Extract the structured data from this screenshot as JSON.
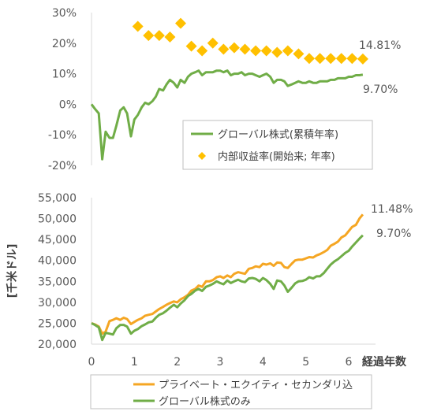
{
  "chart_data": [
    {
      "type": "line",
      "yticks": [
        "30%",
        "20%",
        "10%",
        "0%",
        "-10%",
        "-20%"
      ],
      "ylim": [
        -20,
        30
      ],
      "xlim": [
        0,
        6.5
      ],
      "legend_position": "bottom-right",
      "series": [
        {
          "name": "グローバル株式(累積年率)",
          "color": "#70ad47",
          "kind": "line",
          "end_label": "9.70%",
          "x": [
            0,
            0.08,
            0.17,
            0.25,
            0.33,
            0.42,
            0.5,
            0.58,
            0.67,
            0.75,
            0.83,
            0.92,
            1.0,
            1.08,
            1.17,
            1.25,
            1.33,
            1.42,
            1.5,
            1.58,
            1.67,
            1.75,
            1.83,
            1.92,
            2.0,
            2.08,
            2.17,
            2.25,
            2.33,
            2.42,
            2.5,
            2.58,
            2.67,
            2.75,
            2.83,
            2.92,
            3.0,
            3.08,
            3.17,
            3.25,
            3.33,
            3.42,
            3.5,
            3.58,
            3.67,
            3.75,
            3.83,
            3.92,
            4.0,
            4.08,
            4.17,
            4.25,
            4.33,
            4.42,
            4.5,
            4.58,
            4.67,
            4.75,
            4.83,
            4.92,
            5.0,
            5.08,
            5.17,
            5.25,
            5.33,
            5.42,
            5.5,
            5.58,
            5.67,
            5.75,
            5.83,
            5.92,
            6.0,
            6.08,
            6.17,
            6.25,
            6.33
          ],
          "y": [
            0,
            -1.5,
            -3,
            -18,
            -9,
            -11,
            -11,
            -7,
            -2,
            -1,
            -3,
            -10.5,
            -5,
            -3.5,
            -1,
            0.5,
            0,
            1,
            2.5,
            5,
            4.5,
            6.5,
            8,
            7,
            5.5,
            8,
            7,
            9,
            10,
            10.5,
            11,
            9.5,
            10.5,
            10.5,
            10.5,
            11,
            11,
            10.5,
            11,
            9.5,
            10,
            10,
            10.5,
            9.5,
            10,
            10,
            9.5,
            9,
            9.5,
            10,
            9,
            7,
            8,
            8,
            7.5,
            6,
            6.5,
            7,
            7.5,
            7,
            7,
            7.5,
            7,
            7,
            7.5,
            7.5,
            7.5,
            8,
            8,
            8.5,
            8.5,
            8.5,
            9,
            9,
            9.5,
            9.5,
            9.7
          ]
        },
        {
          "name": "内部収益率(開始来; 年率)",
          "color": "#ffc000",
          "kind": "marker",
          "end_label": "14.81%",
          "x": [
            1.08,
            1.33,
            1.58,
            1.83,
            2.08,
            2.33,
            2.58,
            2.83,
            3.08,
            3.33,
            3.58,
            3.83,
            4.08,
            4.33,
            4.58,
            4.83,
            5.08,
            5.33,
            5.58,
            5.83,
            6.08,
            6.33
          ],
          "y": [
            25.5,
            22.5,
            22.5,
            22,
            26.5,
            19,
            17.5,
            20,
            18,
            18.5,
            18,
            17.5,
            17.5,
            17,
            17.5,
            16.5,
            15,
            15,
            15,
            15,
            15,
            14.81
          ]
        }
      ]
    },
    {
      "type": "line",
      "ylabel": "[千米ドル]",
      "xlabel": "経過年数",
      "yticks": [
        "55,000",
        "50,000",
        "45,000",
        "40,000",
        "35,000",
        "30,000",
        "25,000",
        "20,000"
      ],
      "xticks": [
        "0",
        "1",
        "2",
        "3",
        "4",
        "5",
        "6"
      ],
      "ylim": [
        20000,
        55000
      ],
      "xlim": [
        0,
        6.5
      ],
      "legend_position": "bottom",
      "series": [
        {
          "name": "プライベート・エクイティ・セカンダリ込",
          "color": "#f5a623",
          "end_label": "11.48%",
          "x": [
            0,
            0.08,
            0.17,
            0.25,
            0.33,
            0.42,
            0.5,
            0.58,
            0.67,
            0.75,
            0.83,
            0.92,
            1.0,
            1.08,
            1.17,
            1.25,
            1.33,
            1.42,
            1.5,
            1.58,
            1.67,
            1.75,
            1.83,
            1.92,
            2.0,
            2.08,
            2.17,
            2.25,
            2.33,
            2.42,
            2.5,
            2.58,
            2.67,
            2.75,
            2.83,
            2.92,
            3.0,
            3.08,
            3.17,
            3.25,
            3.33,
            3.42,
            3.5,
            3.58,
            3.67,
            3.75,
            3.83,
            3.92,
            4.0,
            4.08,
            4.17,
            4.25,
            4.33,
            4.42,
            4.5,
            4.58,
            4.67,
            4.75,
            4.83,
            4.92,
            5.0,
            5.08,
            5.17,
            5.25,
            5.33,
            5.42,
            5.5,
            5.58,
            5.67,
            5.75,
            5.83,
            5.92,
            6.0,
            6.08,
            6.17,
            6.25,
            6.33
          ],
          "y": [
            25000,
            24700,
            24200,
            22500,
            23000,
            25500,
            25800,
            26200,
            25800,
            26300,
            26000,
            24800,
            25300,
            25800,
            26200,
            26800,
            27000,
            27200,
            27800,
            28400,
            28900,
            29400,
            29800,
            30200,
            30000,
            30700,
            31200,
            31800,
            32800,
            33200,
            34000,
            33700,
            35000,
            35000,
            35300,
            36000,
            36200,
            35800,
            36400,
            36000,
            36800,
            37200,
            37000,
            36800,
            38000,
            38200,
            38600,
            38400,
            39200,
            39000,
            39300,
            38700,
            39500,
            39400,
            38400,
            38200,
            39200,
            40000,
            40200,
            40200,
            40500,
            40800,
            40700,
            41200,
            41500,
            42000,
            42500,
            43500,
            44000,
            44500,
            45500,
            46000,
            47000,
            48000,
            48500,
            50000,
            51000
          ]
        },
        {
          "name": "グローバル株式のみ",
          "color": "#70ad47",
          "end_label": "9.70%",
          "x": [
            0,
            0.08,
            0.17,
            0.25,
            0.33,
            0.42,
            0.5,
            0.58,
            0.67,
            0.75,
            0.83,
            0.92,
            1.0,
            1.08,
            1.17,
            1.25,
            1.33,
            1.42,
            1.5,
            1.58,
            1.67,
            1.75,
            1.83,
            1.92,
            2.0,
            2.08,
            2.17,
            2.25,
            2.33,
            2.42,
            2.5,
            2.58,
            2.67,
            2.75,
            2.83,
            2.92,
            3.0,
            3.08,
            3.17,
            3.25,
            3.33,
            3.42,
            3.5,
            3.58,
            3.67,
            3.75,
            3.83,
            3.92,
            4.0,
            4.08,
            4.17,
            4.25,
            4.33,
            4.42,
            4.5,
            4.58,
            4.67,
            4.75,
            4.83,
            4.92,
            5.0,
            5.08,
            5.17,
            5.25,
            5.33,
            5.42,
            5.5,
            5.58,
            5.67,
            5.75,
            5.83,
            5.92,
            6.0,
            6.08,
            6.17,
            6.25,
            6.33
          ],
          "y": [
            25000,
            24600,
            24000,
            21000,
            22700,
            22500,
            22300,
            23800,
            24600,
            24600,
            24200,
            22500,
            23200,
            23600,
            24300,
            24700,
            25200,
            25400,
            26300,
            27000,
            27400,
            28000,
            28700,
            29400,
            28800,
            29700,
            30500,
            31500,
            32000,
            32800,
            33200,
            32700,
            33700,
            34000,
            34400,
            35000,
            34600,
            34300,
            35200,
            34600,
            35000,
            35400,
            35000,
            34800,
            35700,
            35800,
            35600,
            35000,
            35800,
            35300,
            34400,
            33200,
            35200,
            35000,
            34000,
            32500,
            33500,
            34500,
            35000,
            35100,
            35400,
            36000,
            35700,
            36200,
            36200,
            37000,
            38000,
            39000,
            39800,
            40300,
            41000,
            41800,
            42300,
            43300,
            44300,
            45200,
            46000
          ]
        }
      ]
    }
  ]
}
